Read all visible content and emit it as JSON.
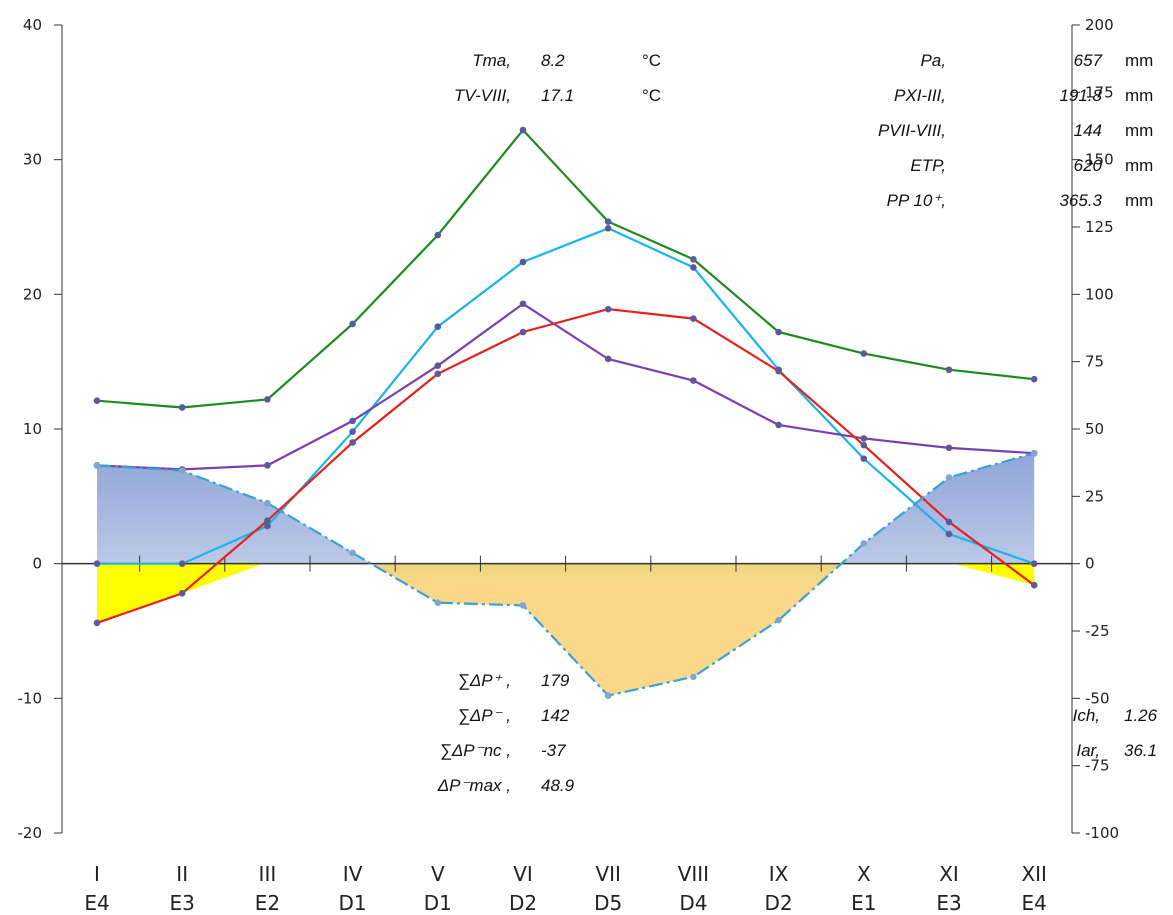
{
  "chart_data": {
    "type": "line",
    "categories": [
      "I",
      "II",
      "III",
      "IV",
      "V",
      "VI",
      "VII",
      "VIII",
      "IX",
      "X",
      "XI",
      "XII"
    ],
    "categories_2": [
      "E4",
      "E3",
      "E2",
      "D1",
      "D1",
      "D2",
      "D5",
      "D4",
      "D2",
      "E1",
      "E3",
      "E4"
    ],
    "y_left": {
      "range": [
        -20,
        40
      ],
      "ticks": [
        -20,
        -10,
        0,
        10,
        20,
        30,
        40
      ]
    },
    "y_right": {
      "range": [
        -100,
        200
      ],
      "ticks": [
        -100,
        -75,
        -50,
        -25,
        0,
        25,
        50,
        75,
        100,
        125,
        150,
        175,
        200
      ]
    },
    "grid": false,
    "legend": "none",
    "series": [
      {
        "color": "#1f8a1f",
        "axis": "right",
        "values": [
          60.5,
          58,
          61,
          89,
          122,
          161,
          127,
          113,
          86,
          78,
          72,
          68.5
        ]
      },
      {
        "color": "#1ab4ea",
        "axis": "right",
        "values": [
          0,
          0,
          14,
          49,
          88,
          112,
          124.5,
          110,
          72,
          39,
          11,
          0
        ]
      },
      {
        "color": "#7b3fb0",
        "axis": "right",
        "values": [
          36.5,
          35,
          36.5,
          53,
          73.5,
          96.5,
          76,
          68,
          51.5,
          46.5,
          43,
          41
        ]
      },
      {
        "color": "#e8201c",
        "axis": "left",
        "values": [
          -4.4,
          -2.2,
          3.2,
          9.0,
          14.1,
          17.2,
          18.9,
          18.2,
          14.3,
          8.8,
          3.1,
          -1.6
        ]
      },
      {
        "color": "#3aa0d8",
        "axis": "right",
        "dashed": true,
        "values": [
          36.5,
          34.5,
          22.5,
          4,
          -14.5,
          -15.5,
          -49,
          -42,
          -21,
          7.5,
          32,
          41
        ]
      }
    ],
    "area_fills": {
      "surplus": "#8fa6d8",
      "deficit": "#a6c94a",
      "deficit_low": "#fcd98a",
      "temp_below_zero": "#ffff00"
    }
  },
  "stats_top_left": [
    {
      "label": "Tma,",
      "value": "8.2",
      "unit": "°C"
    },
    {
      "label": "TV-VIII,",
      "value": "17.1",
      "unit": "°C"
    }
  ],
  "stats_top_right": [
    {
      "label": "Pa,",
      "value": "657",
      "unit": "mm"
    },
    {
      "label": "PXI-III,",
      "value": "191.8",
      "unit": "mm"
    },
    {
      "label": "PVII-VIII,",
      "value": "144",
      "unit": "mm"
    },
    {
      "label": "ETP,",
      "value": "620",
      "unit": "mm"
    },
    {
      "label": "PP 10⁺,",
      "value": "365.3",
      "unit": "mm"
    }
  ],
  "stats_bottom": [
    {
      "label": "∑ΔP⁺ ,",
      "value": "179"
    },
    {
      "label": "∑ΔP⁻ ,",
      "value": "142"
    },
    {
      "label": "∑ΔP⁻nc ,",
      "value": "-37"
    },
    {
      "label": "ΔP⁻max ,",
      "value": "48.9"
    }
  ],
  "stats_right": [
    {
      "label": "Ich,",
      "value": "1.26"
    },
    {
      "label": "Iar,",
      "value": "36.1"
    }
  ]
}
